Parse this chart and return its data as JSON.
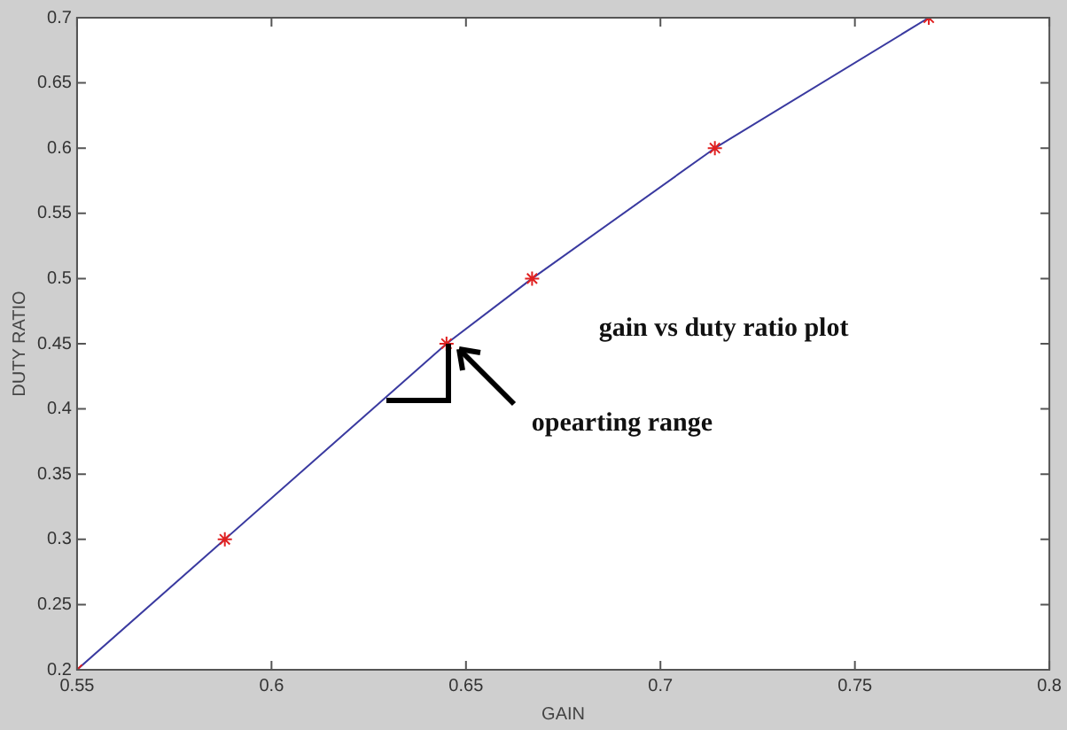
{
  "chart_data": {
    "type": "line",
    "xlabel": "GAIN",
    "ylabel": "DUTY RATIO",
    "x": [
      0.55,
      0.588,
      0.645,
      0.667,
      0.714,
      0.769
    ],
    "series": [
      {
        "color": "#3a3aa0",
        "values": [
          0.2,
          0.3,
          0.45,
          0.5,
          0.6,
          0.7
        ]
      }
    ],
    "marker": "cross",
    "line_style": "solid",
    "grid": false,
    "legend": false,
    "xlim": [
      0.55,
      0.8
    ],
    "xticks": [
      0.55,
      0.6,
      0.65,
      0.7,
      0.75,
      0.8
    ],
    "ylim": [
      0.2,
      0.7
    ],
    "yticks": [
      0.2,
      0.25,
      0.3,
      0.35,
      0.4,
      0.45,
      0.5,
      0.55,
      0.6,
      0.65,
      0.7
    ],
    "annotations": [
      "gain vs duty ratio plot",
      {
        "text": "opearting range",
        "x": 0.645,
        "y": 0.45
      }
    ]
  }
}
